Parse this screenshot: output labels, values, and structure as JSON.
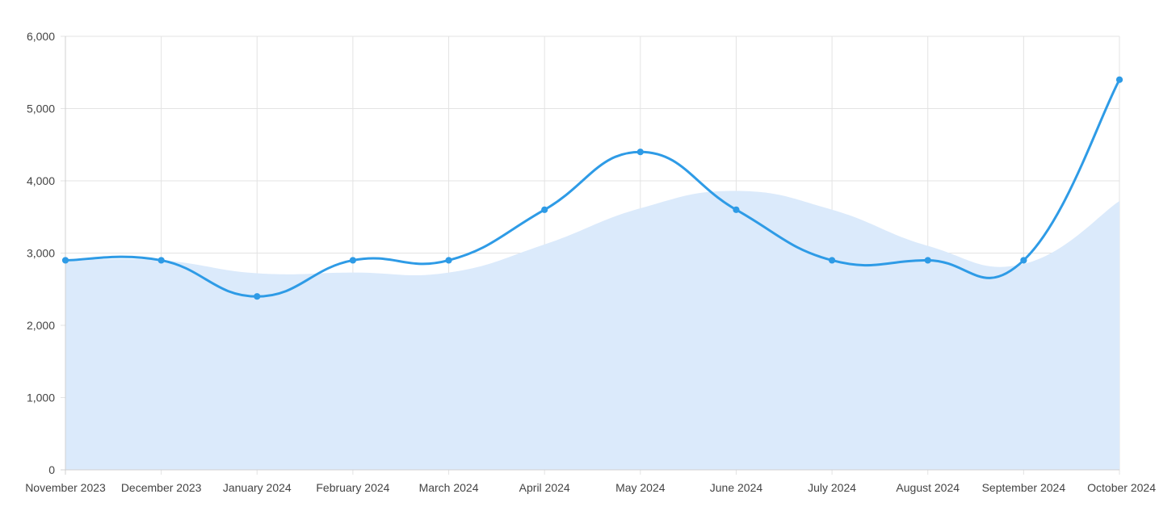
{
  "chart_data": {
    "type": "line",
    "title": "",
    "xlabel": "",
    "ylabel": "",
    "categories": [
      "November 2023",
      "December 2023",
      "January 2024",
      "February 2024",
      "March 2024",
      "April 2024",
      "May 2024",
      "June 2024",
      "July 2024",
      "August 2024",
      "September 2024",
      "October 2024"
    ],
    "ylim": [
      0,
      6000
    ],
    "yticks": [
      0,
      1000,
      2000,
      3000,
      4000,
      5000,
      6000
    ],
    "ytick_labels": [
      "0",
      "1,000",
      "2,000",
      "3,000",
      "4,000",
      "5,000",
      "6,000"
    ],
    "grid": true,
    "series": [
      {
        "role": "line",
        "color": "#2e9be6",
        "markers": true,
        "values": [
          2900,
          2900,
          2400,
          2900,
          2900,
          3600,
          4400,
          3600,
          2900,
          2900,
          2900,
          5400
        ]
      },
      {
        "role": "area",
        "color": "#dbeafb",
        "markers": false,
        "values": [
          2900,
          2900,
          2720,
          2730,
          2730,
          3120,
          3620,
          3860,
          3600,
          3100,
          2850,
          3720
        ]
      }
    ]
  }
}
